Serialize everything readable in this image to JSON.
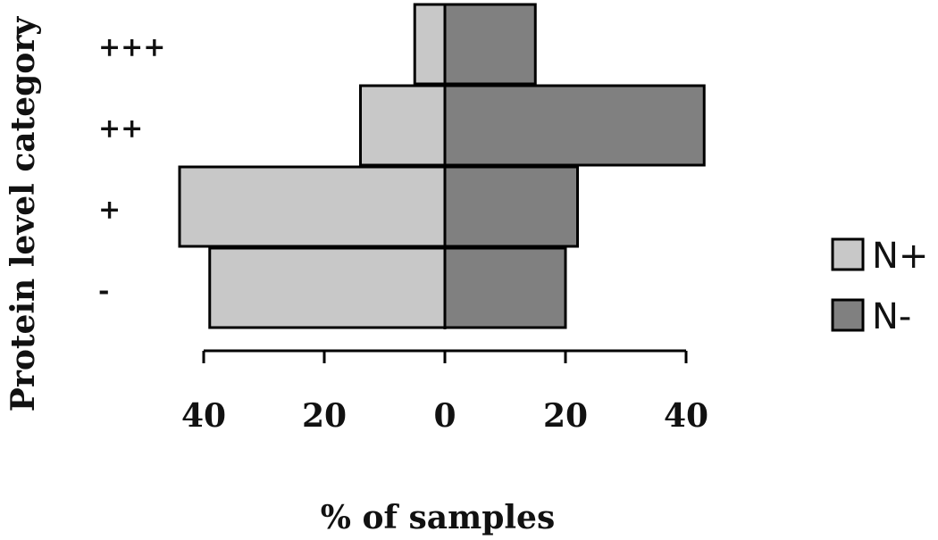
{
  "chart_data": {
    "type": "bar",
    "orientation": "horizontal",
    "diverging": true,
    "categories": [
      "+++",
      "++",
      "+",
      "-"
    ],
    "series": [
      {
        "name": "N+",
        "values": [
          5,
          14,
          44,
          39
        ],
        "direction": "left",
        "color": "#c8c8c8"
      },
      {
        "name": "N-",
        "values": [
          15,
          43,
          22,
          20
        ],
        "direction": "right",
        "color": "#808080"
      }
    ],
    "x_ticks": [
      {
        "value": -40,
        "label": "40"
      },
      {
        "value": -20,
        "label": "20"
      },
      {
        "value": 0,
        "label": "0"
      },
      {
        "value": 20,
        "label": "20"
      },
      {
        "value": 40,
        "label": "40"
      }
    ],
    "xlim": [
      -40,
      40
    ],
    "xlabel": "% of samples",
    "ylabel": "Protein level category",
    "grid": false,
    "legend_position": "right"
  }
}
